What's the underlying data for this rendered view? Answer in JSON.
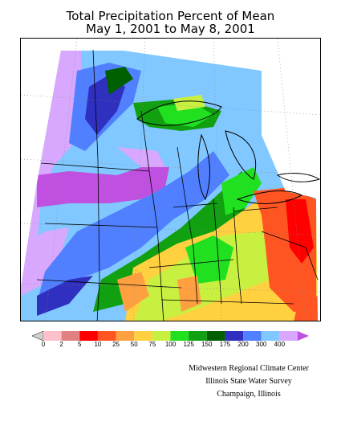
{
  "title": {
    "line1": "Total Precipitation Percent of Mean",
    "line2": "May 1, 2001 to May 8, 2001"
  },
  "legend": {
    "bins": [
      {
        "label": "0",
        "color": "#ffc0cb"
      },
      {
        "label": "2",
        "color": "#e08080"
      },
      {
        "label": "5",
        "color": "#ff0000"
      },
      {
        "label": "10",
        "color": "#ff5522"
      },
      {
        "label": "25",
        "color": "#ffa040"
      },
      {
        "label": "50",
        "color": "#ffd040"
      },
      {
        "label": "75",
        "color": "#c8f040"
      },
      {
        "label": "100",
        "color": "#20e020"
      },
      {
        "label": "125",
        "color": "#10a010"
      },
      {
        "label": "150",
        "color": "#006000"
      },
      {
        "label": "175",
        "color": "#3030c0"
      },
      {
        "label": "200",
        "color": "#5080ff"
      },
      {
        "label": "300",
        "color": "#80c8ff"
      },
      {
        "label": "400",
        "color": "#d8a8ff"
      }
    ],
    "under_color": "#d0d0d0",
    "over_color": "#c050e0"
  },
  "credits": {
    "line1": "Midwestern Regional Climate Center",
    "line2": "Illinois State Water Survey",
    "line3": "Champaign, Illinois"
  }
}
